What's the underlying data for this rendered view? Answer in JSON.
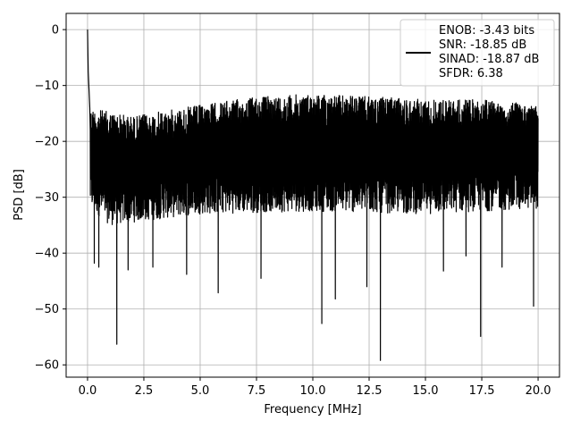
{
  "chart_data": {
    "type": "line",
    "title": "",
    "xlabel": "Frequency [MHz]",
    "ylabel": "PSD [dB]",
    "xlim": [
      -0.95,
      20.95
    ],
    "ylim": [
      -62.2,
      2.9
    ],
    "xticks": [
      0.0,
      2.5,
      5.0,
      7.5,
      10.0,
      12.5,
      15.0,
      17.5,
      20.0
    ],
    "xtick_labels": [
      "0.0",
      "2.5",
      "5.0",
      "7.5",
      "10.0",
      "12.5",
      "15.0",
      "17.5",
      "20.0"
    ],
    "yticks": [
      0,
      -10,
      -20,
      -30,
      -40,
      -50,
      -60
    ],
    "ytick_labels": [
      "0",
      "−10",
      "−20",
      "−30",
      "−40",
      "−50",
      "−60"
    ],
    "grid": true,
    "legend_position": "top-right",
    "series": [
      {
        "color": "#000000",
        "legend_lines": [
          "ENOB: -3.43 bits",
          "SNR: -18.85 dB",
          "SINAD: -18.87 dB",
          "SFDR: 6.38"
        ],
        "x_range": [
          0.0,
          20.0
        ],
        "peaks": [
          {
            "x": 0.0,
            "y": 0.0
          },
          {
            "x": 0.03,
            "y": -7.5
          },
          {
            "x": 0.1,
            "y": -14.0
          },
          {
            "x": 6.7,
            "y": -19.5
          }
        ],
        "notches": [
          {
            "x": 1.3,
            "y": -56.3
          },
          {
            "x": 0.5,
            "y": -42.5
          },
          {
            "x": 0.3,
            "y": -41.8
          },
          {
            "x": 1.8,
            "y": -43.0
          },
          {
            "x": 2.9,
            "y": -42.5
          },
          {
            "x": 4.4,
            "y": -43.8
          },
          {
            "x": 5.8,
            "y": -47.1
          },
          {
            "x": 7.7,
            "y": -44.5
          },
          {
            "x": 10.4,
            "y": -52.6
          },
          {
            "x": 11.0,
            "y": -48.2
          },
          {
            "x": 12.4,
            "y": -46.0
          },
          {
            "x": 13.0,
            "y": -59.2
          },
          {
            "x": 15.8,
            "y": -43.2
          },
          {
            "x": 16.8,
            "y": -40.5
          },
          {
            "x": 17.45,
            "y": -54.9
          },
          {
            "x": 18.4,
            "y": -42.5
          },
          {
            "x": 19.8,
            "y": -49.5
          }
        ],
        "noise_floor": {
          "upper_envelope": [
            {
              "x": 0.1,
              "y": -14.0
            },
            {
              "x": 2.0,
              "y": -15.5
            },
            {
              "x": 5.0,
              "y": -13.5
            },
            {
              "x": 7.5,
              "y": -12.0
            },
            {
              "x": 10.0,
              "y": -11.5
            },
            {
              "x": 12.5,
              "y": -12.0
            },
            {
              "x": 15.0,
              "y": -12.5
            },
            {
              "x": 17.5,
              "y": -12.5
            },
            {
              "x": 20.0,
              "y": -13.5
            }
          ],
          "lower_envelope": [
            {
              "x": 0.1,
              "y": -32.0
            },
            {
              "x": 1.0,
              "y": -35.0
            },
            {
              "x": 5.0,
              "y": -33.0
            },
            {
              "x": 10.0,
              "y": -32.5
            },
            {
              "x": 15.0,
              "y": -33.0
            },
            {
              "x": 20.0,
              "y": -32.0
            }
          ]
        }
      }
    ]
  }
}
